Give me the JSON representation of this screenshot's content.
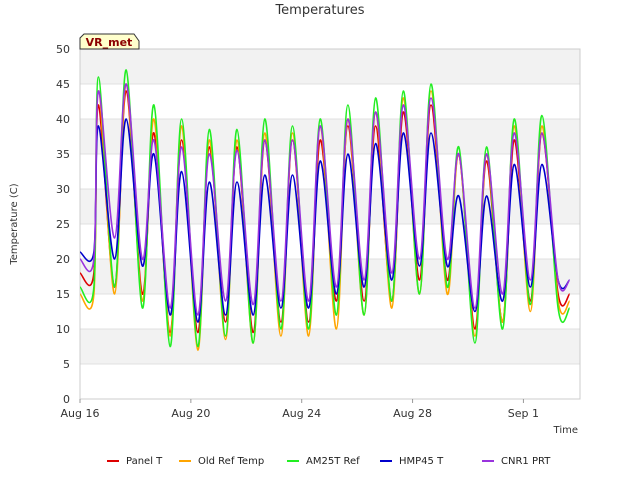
{
  "chart_data": {
    "type": "line",
    "title": "Temperatures",
    "xlabel": "Time",
    "ylabel": "Temperature (C)",
    "ylim": [
      0,
      50
    ],
    "yticks": [
      0,
      5,
      10,
      15,
      20,
      25,
      30,
      35,
      40,
      45,
      50
    ],
    "xlim": [
      "2024-08-16",
      "2024-09-03T01:00"
    ],
    "xticks": [
      {
        "date": "2024-08-16",
        "label": "Aug 16"
      },
      {
        "date": "2024-08-20",
        "label": "Aug 20"
      },
      {
        "date": "2024-08-24",
        "label": "Aug 24"
      },
      {
        "date": "2024-08-28",
        "label": "Aug 28"
      },
      {
        "date": "2024-09-01",
        "label": "Sep 1"
      }
    ],
    "site_badge": "VR_met",
    "grid": "horizontal bands",
    "legend_position": "bottom",
    "x": [
      "2024-08-16T00:00",
      "2024-08-16T12:00",
      "2024-08-16T16:00",
      "2024-08-17T06:00",
      "2024-08-17T16:00",
      "2024-08-18T06:00",
      "2024-08-18T16:00",
      "2024-08-19T06:00",
      "2024-08-19T16:00",
      "2024-08-20T06:00",
      "2024-08-20T16:00",
      "2024-08-21T06:00",
      "2024-08-21T16:00",
      "2024-08-22T06:00",
      "2024-08-22T16:00",
      "2024-08-23T06:00",
      "2024-08-23T16:00",
      "2024-08-24T06:00",
      "2024-08-24T16:00",
      "2024-08-25T06:00",
      "2024-08-25T16:00",
      "2024-08-26T06:00",
      "2024-08-26T16:00",
      "2024-08-27T06:00",
      "2024-08-27T16:00",
      "2024-08-28T06:00",
      "2024-08-28T16:00",
      "2024-08-29T06:00",
      "2024-08-29T16:00",
      "2024-08-30T06:00",
      "2024-08-30T16:00",
      "2024-08-31T06:00",
      "2024-08-31T16:00",
      "2024-09-01T06:00",
      "2024-09-01T16:00",
      "2024-09-02T06:00",
      "2024-09-02T16:00"
    ],
    "series": [
      {
        "name": "Panel T",
        "color": "#dd0000",
        "values": [
          18,
          18,
          42,
          16,
          44,
          15,
          38,
          9.5,
          37,
          9.5,
          36,
          11,
          36,
          9.5,
          37,
          11,
          37,
          11,
          37,
          14,
          39,
          14,
          39,
          14,
          41,
          17,
          42,
          17,
          35,
          10,
          34,
          11,
          37,
          14,
          38,
          15,
          15
        ]
      },
      {
        "name": "Old Ref Temp",
        "color": "#ffa500",
        "values": [
          15,
          15,
          44,
          15,
          45,
          14,
          40,
          9,
          39,
          7,
          37,
          8.5,
          37,
          8,
          38,
          9,
          38,
          9,
          39,
          10,
          40,
          12,
          41,
          13,
          43,
          15,
          44,
          15,
          35,
          9,
          35,
          11,
          39,
          12.5,
          39,
          14,
          14
        ]
      },
      {
        "name": "AM25T Ref",
        "color": "#22ee22",
        "values": [
          16,
          16,
          46,
          16,
          47,
          13,
          42,
          7.5,
          40,
          7.5,
          38.5,
          9,
          38.5,
          8,
          40,
          10,
          39,
          10,
          40,
          12,
          42,
          12,
          43,
          14,
          44,
          15,
          45,
          16,
          36,
          8,
          36,
          10,
          40,
          13.5,
          40.5,
          13,
          13
        ]
      },
      {
        "name": "HMP45 T",
        "color": "#0000cc",
        "values": [
          21,
          21,
          39,
          20,
          40,
          19,
          35,
          12,
          32.5,
          11,
          31,
          12,
          31,
          12,
          32,
          13,
          32,
          13,
          34,
          15,
          35,
          16,
          36.5,
          17,
          38,
          19,
          38,
          19,
          29,
          12.5,
          29,
          14,
          33.5,
          16,
          33.5,
          17,
          17
        ]
      },
      {
        "name": "CNR1 PRT",
        "color": "#9933dd",
        "values": [
          20,
          20,
          44,
          23,
          45,
          20,
          37,
          13,
          36,
          12,
          35,
          14,
          35.5,
          13.5,
          37,
          14,
          37,
          14,
          39,
          16,
          40,
          17,
          41,
          18,
          42,
          20,
          43,
          20,
          35,
          13,
          35,
          15,
          38,
          17,
          38,
          17,
          17
        ]
      }
    ]
  }
}
